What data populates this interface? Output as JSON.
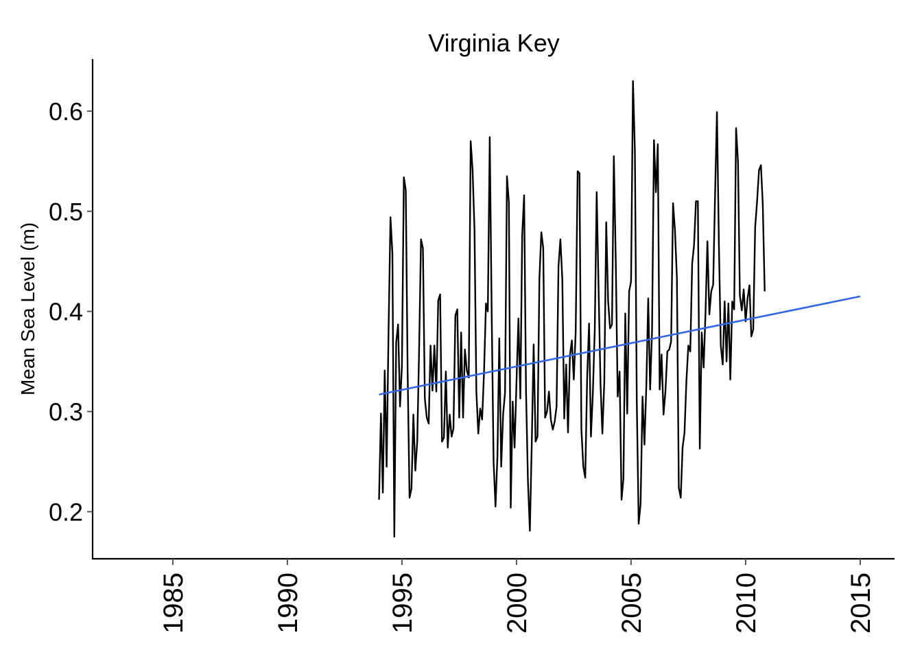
{
  "chart_data": {
    "type": "line",
    "title": "Virginia Key",
    "xlabel": "",
    "ylabel": "Mean Sea Level (m)",
    "xlim": [
      1981.5,
      2016.5
    ],
    "ylim": [
      0.153,
      0.652
    ],
    "x_ticks": [
      1985,
      1990,
      1995,
      2000,
      2005,
      2010,
      2015
    ],
    "x_tick_labels": [
      "1985",
      "1990",
      "1995",
      "2000",
      "2005",
      "2010",
      "2015"
    ],
    "y_ticks": [
      0.2,
      0.3,
      0.4,
      0.5,
      0.6
    ],
    "y_tick_labels": [
      "0.2",
      "0.3",
      "0.4",
      "0.5",
      "0.6"
    ],
    "grid": false,
    "legend": "none",
    "colors": {
      "series": "#000000",
      "trend": "#3366e6"
    },
    "series": [
      {
        "x_start": 1994.0,
        "x_step": 0.0833333,
        "values": [
          0.212,
          0.298,
          0.219,
          0.341,
          0.245,
          0.381,
          0.494,
          0.458,
          0.175,
          0.369,
          0.387,
          0.305,
          0.346,
          0.534,
          0.521,
          0.34,
          0.214,
          0.223,
          0.297,
          0.241,
          0.27,
          0.36,
          0.472,
          0.463,
          0.313,
          0.294,
          0.288,
          0.366,
          0.321,
          0.366,
          0.32,
          0.411,
          0.417,
          0.27,
          0.274,
          0.34,
          0.264,
          0.297,
          0.275,
          0.283,
          0.396,
          0.402,
          0.294,
          0.379,
          0.294,
          0.362,
          0.341,
          0.334,
          0.57,
          0.541,
          0.481,
          0.32,
          0.278,
          0.303,
          0.292,
          0.34,
          0.408,
          0.4,
          0.574,
          0.4,
          0.25,
          0.205,
          0.255,
          0.373,
          0.245,
          0.297,
          0.319,
          0.535,
          0.509,
          0.204,
          0.31,
          0.264,
          0.33,
          0.393,
          0.313,
          0.476,
          0.516,
          0.32,
          0.23,
          0.181,
          0.27,
          0.367,
          0.27,
          0.275,
          0.433,
          0.479,
          0.463,
          0.294,
          0.3,
          0.32,
          0.292,
          0.282,
          0.29,
          0.305,
          0.445,
          0.472,
          0.432,
          0.293,
          0.347,
          0.279,
          0.356,
          0.371,
          0.332,
          0.38,
          0.54,
          0.538,
          0.282,
          0.245,
          0.234,
          0.334,
          0.388,
          0.275,
          0.318,
          0.382,
          0.519,
          0.421,
          0.327,
          0.278,
          0.33,
          0.489,
          0.41,
          0.383,
          0.387,
          0.555,
          0.451,
          0.315,
          0.34,
          0.212,
          0.233,
          0.398,
          0.298,
          0.42,
          0.43,
          0.63,
          0.56,
          0.312,
          0.188,
          0.208,
          0.315,
          0.267,
          0.327,
          0.413,
          0.322,
          0.381,
          0.571,
          0.519,
          0.567,
          0.322,
          0.357,
          0.297,
          0.32,
          0.36,
          0.362,
          0.37,
          0.508,
          0.481,
          0.434,
          0.224,
          0.214,
          0.264,
          0.279,
          0.331,
          0.366,
          0.36,
          0.448,
          0.466,
          0.51,
          0.51,
          0.263,
          0.379,
          0.344,
          0.398,
          0.47,
          0.397,
          0.42,
          0.427,
          0.518,
          0.599,
          0.469,
          0.366,
          0.347,
          0.41,
          0.35,
          0.408,
          0.332,
          0.41,
          0.402,
          0.583,
          0.549,
          0.416,
          0.401,
          0.422,
          0.39,
          0.413,
          0.426,
          0.375,
          0.382,
          0.484,
          0.51,
          0.541,
          0.546,
          0.507,
          0.42
        ]
      },
      {
        "role": "trend",
        "x": [
          1994.0,
          2015.0
        ],
        "values": [
          0.317,
          0.415
        ]
      }
    ]
  }
}
